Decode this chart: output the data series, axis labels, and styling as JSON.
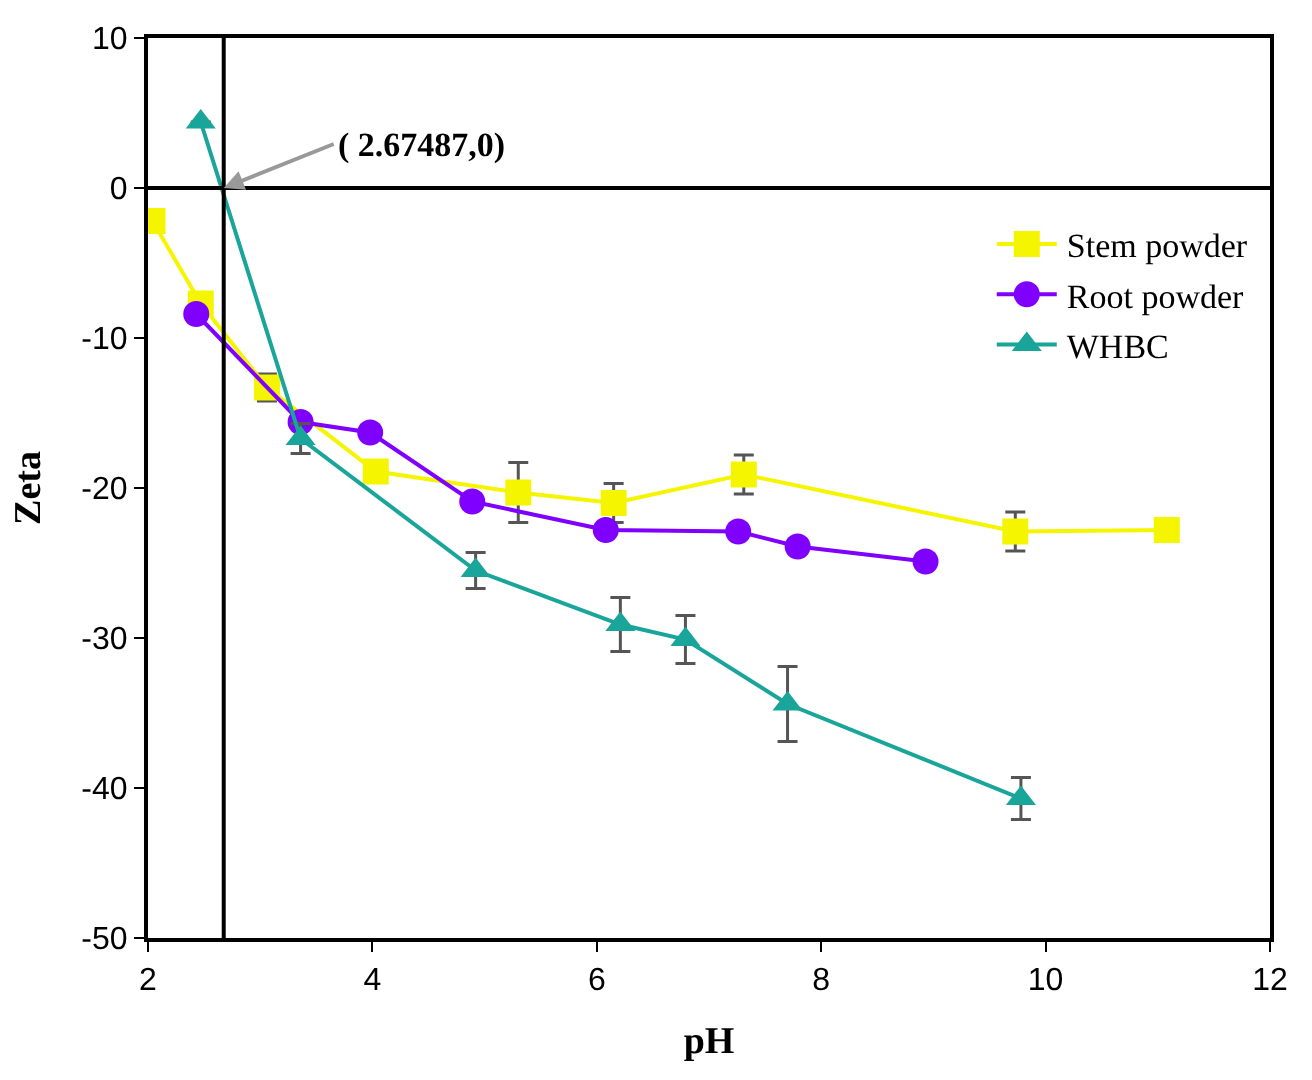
{
  "chart_data": {
    "type": "line",
    "xlabel": "pH",
    "ylabel": "Zeta",
    "xlim": [
      2,
      12
    ],
    "xticks": [
      2,
      4,
      6,
      8,
      10,
      12
    ],
    "ylim": [
      -50,
      10
    ],
    "yticks": [
      -50,
      -40,
      -30,
      -20,
      -10,
      0,
      10
    ],
    "legend": "top right",
    "line_style": "solid",
    "series": [
      {
        "name": "Stem powder",
        "color": "#f5f500",
        "marker": "square",
        "x": [
          2.04,
          2.47,
          3.06,
          4.03,
          5.3,
          6.15,
          7.31,
          9.73,
          11.08
        ],
        "values": [
          -2.2,
          -7.7,
          -13.3,
          -18.9,
          -20.3,
          -21.0,
          -19.1,
          -22.9,
          -22.8
        ],
        "errors": [
          null,
          null,
          0.9,
          null,
          2.0,
          1.3,
          1.3,
          1.3,
          null
        ]
      },
      {
        "name": "Root powder",
        "color": "#7f00ff",
        "marker": "circle",
        "x": [
          2.43,
          3.36,
          3.98,
          4.89,
          6.08,
          7.26,
          7.79,
          8.93
        ],
        "values": [
          -8.4,
          -15.6,
          -16.3,
          -20.9,
          -22.8,
          -22.9,
          -23.9,
          -24.9
        ]
      },
      {
        "name": "WHBC",
        "color": "#1aa59a",
        "marker": "triangle",
        "x": [
          2.47,
          3.36,
          4.92,
          6.21,
          6.79,
          7.7,
          9.78
        ],
        "values": [
          4.4,
          -16.7,
          -25.5,
          -29.1,
          -30.1,
          -34.4,
          -40.7
        ],
        "errors": [
          null,
          1.0,
          1.2,
          1.8,
          1.6,
          2.5,
          1.4
        ]
      }
    ],
    "ref_lines": [
      {
        "axis": "x",
        "value": 2.67487,
        "color": "#000000"
      },
      {
        "axis": "y",
        "value": 0,
        "color": "#000000"
      }
    ],
    "annotations": [
      {
        "text": "( 2.67487,0)",
        "x": 2.67487,
        "y": 0
      }
    ]
  }
}
